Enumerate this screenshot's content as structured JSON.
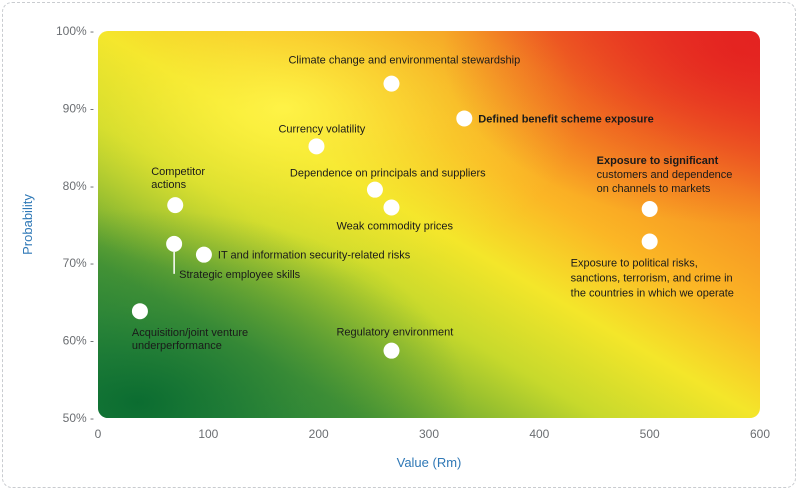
{
  "chart_data": {
    "type": "scatter",
    "title": "",
    "xlabel": "Value (Rm)",
    "ylabel": "Probability",
    "xlim": [
      0,
      600
    ],
    "ylim": [
      50,
      100
    ],
    "x_ticks": [
      0,
      100,
      200,
      300,
      400,
      500,
      600
    ],
    "y_ticks": [
      50,
      60,
      70,
      80,
      90,
      100
    ],
    "x_tick_labels": [
      "0",
      "100",
      "200",
      "300",
      "400",
      "500",
      "600"
    ],
    "y_tick_labels": [
      "50% -",
      "60% -",
      "70% -",
      "80% -",
      "90% -",
      "100% -"
    ],
    "grid": false,
    "background": "heat gradient green (low) to yellow to orange to red (high)",
    "colors": {
      "green": "#1f7a3a",
      "yellow": "#f4e62a",
      "orange": "#f7931e",
      "red": "#e8262a",
      "axis_title": "#2f78b6",
      "marker": "#ffffff"
    },
    "points": [
      {
        "x": 266,
        "y": 93.2,
        "label_lines": [
          "Climate change and environmental stewardship"
        ],
        "label_bold": false
      },
      {
        "x": 332,
        "y": 88.7,
        "label_lines": [
          "Defined benefit scheme exposure"
        ],
        "label_bold": true
      },
      {
        "x": 198,
        "y": 85.1,
        "label_lines": [
          "Currency volatility"
        ],
        "label_bold": false
      },
      {
        "x": 70,
        "y": 77.5,
        "label_lines": [
          "Competitor",
          "actions"
        ],
        "label_bold": false
      },
      {
        "x": 251,
        "y": 79.5,
        "label_lines": [
          "Dependence on principals and suppliers"
        ],
        "label_bold": false
      },
      {
        "x": 266,
        "y": 77.2,
        "label_lines": [
          "Weak commodity prices"
        ],
        "label_bold": false
      },
      {
        "x": 500,
        "y": 77.0,
        "label_lines": [
          "Exposure to significant",
          "customers and dependence",
          "on channels to markets"
        ],
        "label_bold": false
      },
      {
        "x": 69,
        "y": 72.5,
        "label_lines": [
          "Strategic employee skills"
        ],
        "label_bold": false
      },
      {
        "x": 96,
        "y": 71.1,
        "label_lines": [
          "IT and information security-related risks"
        ],
        "label_bold": false
      },
      {
        "x": 500,
        "y": 72.8,
        "label_lines": [
          "Exposure to political risks,",
          "sanctions, terrorism, and crime in",
          "the countries in which we operate"
        ],
        "label_bold": false
      },
      {
        "x": 38,
        "y": 63.8,
        "label_lines": [
          "Acquisition/joint venture",
          "underperformance"
        ],
        "label_bold": false
      },
      {
        "x": 266,
        "y": 58.7,
        "label_lines": [
          "Regulatory environment"
        ],
        "label_bold": false
      }
    ]
  }
}
